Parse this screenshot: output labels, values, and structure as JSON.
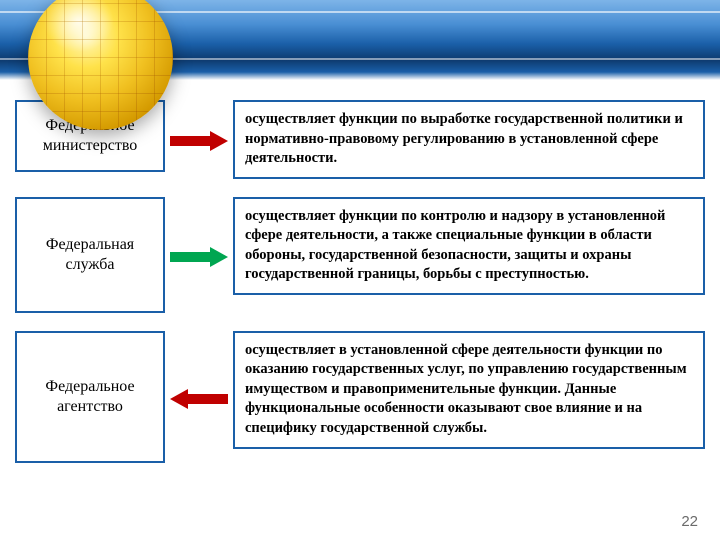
{
  "header": {
    "gradient_colors": [
      "#7db4e8",
      "#4a8fd4",
      "#1a5fa8",
      "#0d3a6e"
    ],
    "globe_colors": [
      "#fff8c0",
      "#ffe24a",
      "#f0c020",
      "#d49a00"
    ]
  },
  "rows": [
    {
      "left": "Федеральное министерство",
      "right": "осуществляет функции по выработке государственной политики и нормативно-правовому регулированию в установленной сфере деятельности.",
      "border_color": "#1a5fa8",
      "arrow_color": "#c00000",
      "arrow_dir": "right",
      "left_pad": "14px 4px"
    },
    {
      "left": "Федеральная служба",
      "right": "осуществляет функции по контролю и надзору в установленной сфере деятельности, а также специальные функции в области обороны, государственной безопасности, защиты и охраны государственной границы, борьбы с преступностью.",
      "border_color": "#1a5fa8",
      "arrow_color": "#00a651",
      "arrow_dir": "right",
      "left_pad": "36px 4px"
    },
    {
      "left": "Федеральное агентство",
      "right": "осуществляет в установленной сфере деятельности функции по оказанию государственных услуг, по управлению государственным имуществом и правоприменительные функции. Данные функциональные особенности оказывают свое влияние и на специфику государственной службы.",
      "border_color": "#1a5fa8",
      "arrow_color": "#c00000",
      "arrow_dir": "left",
      "left_pad": "44px 4px"
    }
  ],
  "page_number": "22",
  "typography": {
    "left_box_fontsize": 16,
    "right_box_fontsize": 14.5,
    "right_box_fontweight": "bold",
    "font_family_serif": "Georgia, Times New Roman, serif"
  }
}
